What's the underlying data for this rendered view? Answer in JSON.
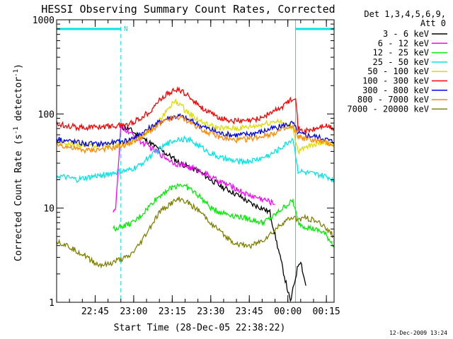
{
  "chart_data": {
    "type": "line",
    "title": "HESSI Observing Summary Count Rates, Corrected",
    "xlabel": "Start Time (28-Dec-05 22:38:22)",
    "ylabel": "Corrected Count Rate (s",
    "ylabel_sup1": "-1",
    "ylabel_mid": " detector",
    "ylabel_sup2": "-1",
    "ylabel_end": ")",
    "x_ticks": [
      "22:45",
      "23:00",
      "23:15",
      "23:30",
      "23:45",
      "00:00",
      "00:15"
    ],
    "y_ticks": [
      "1",
      "10",
      "100",
      "1000"
    ],
    "ylim": [
      1,
      1000
    ],
    "y_scale": "log",
    "x_range_minutes": [
      -8,
      100
    ],
    "legend_header": [
      "Det 1,3,4,5,6,9,",
      "Att 0"
    ],
    "legend_placement": "top-right-outside",
    "footer_timestamp": "12-Dec-2009 13:24",
    "flags": {
      "marker_label": "N",
      "color": "#00e5e5",
      "segments": [
        [
          -8,
          17
        ],
        [
          85,
          100
        ]
      ],
      "dashed_at": [
        17,
        100
      ],
      "solid_at": [
        85
      ]
    },
    "series": [
      {
        "name": "3 - 6 keV",
        "color": "#000000",
        "points": [
          [
            17,
            72
          ],
          [
            20,
            70
          ],
          [
            24,
            58
          ],
          [
            28,
            50
          ],
          [
            32,
            42
          ],
          [
            36,
            36
          ],
          [
            40,
            30
          ],
          [
            44,
            27
          ],
          [
            48,
            24
          ],
          [
            52,
            20
          ],
          [
            56,
            17
          ],
          [
            60,
            15
          ],
          [
            64,
            13
          ],
          [
            68,
            11
          ],
          [
            72,
            10
          ],
          [
            75,
            9
          ],
          [
            83,
            1
          ],
          [
            86,
            2.5
          ],
          [
            87,
            2.8
          ],
          [
            88,
            2
          ],
          [
            89,
            1.5
          ]
        ]
      },
      {
        "name": "6 - 12 keV",
        "color": "#ff00ff",
        "points": [
          [
            14,
            9.5
          ],
          [
            15,
            10
          ],
          [
            17,
            72
          ],
          [
            20,
            65
          ],
          [
            24,
            52
          ],
          [
            28,
            45
          ],
          [
            32,
            38
          ],
          [
            34,
            35
          ],
          [
            38,
            30
          ],
          [
            42,
            28
          ],
          [
            46,
            26
          ],
          [
            50,
            23
          ],
          [
            54,
            20
          ],
          [
            58,
            18
          ],
          [
            62,
            16
          ],
          [
            66,
            14
          ],
          [
            70,
            13
          ],
          [
            74,
            12
          ],
          [
            77,
            11
          ]
        ]
      },
      {
        "name": "12 - 25 keV",
        "color": "#00ee00",
        "points": [
          [
            14,
            6
          ],
          [
            18,
            6.5
          ],
          [
            22,
            7
          ],
          [
            26,
            9
          ],
          [
            30,
            12
          ],
          [
            34,
            15
          ],
          [
            38,
            17
          ],
          [
            40,
            18
          ],
          [
            44,
            16
          ],
          [
            48,
            13
          ],
          [
            52,
            10
          ],
          [
            56,
            9
          ],
          [
            60,
            8.5
          ],
          [
            64,
            8
          ],
          [
            68,
            7.5
          ],
          [
            72,
            7
          ],
          [
            76,
            8
          ],
          [
            80,
            10
          ],
          [
            84,
            12
          ],
          [
            86,
            7
          ],
          [
            88,
            6.5
          ],
          [
            92,
            6
          ],
          [
            96,
            5.5
          ],
          [
            100,
            4
          ]
        ]
      },
      {
        "name": "25 - 50 keV",
        "color": "#00e5e5",
        "points": [
          [
            -8,
            22
          ],
          [
            -4,
            21
          ],
          [
            0,
            20
          ],
          [
            4,
            21
          ],
          [
            8,
            22
          ],
          [
            12,
            23
          ],
          [
            16,
            24
          ],
          [
            20,
            25
          ],
          [
            24,
            28
          ],
          [
            28,
            35
          ],
          [
            32,
            42
          ],
          [
            36,
            50
          ],
          [
            40,
            55
          ],
          [
            44,
            52
          ],
          [
            48,
            45
          ],
          [
            52,
            38
          ],
          [
            56,
            34
          ],
          [
            60,
            32
          ],
          [
            64,
            31
          ],
          [
            68,
            32
          ],
          [
            72,
            34
          ],
          [
            76,
            38
          ],
          [
            80,
            45
          ],
          [
            84,
            55
          ],
          [
            86,
            25
          ],
          [
            88,
            24
          ],
          [
            92,
            23
          ],
          [
            96,
            22
          ],
          [
            100,
            20
          ]
        ]
      },
      {
        "name": "50 - 100 keV",
        "color": "#dddd00",
        "points": [
          [
            -8,
            50
          ],
          [
            0,
            47
          ],
          [
            8,
            46
          ],
          [
            16,
            47
          ],
          [
            20,
            50
          ],
          [
            24,
            55
          ],
          [
            28,
            65
          ],
          [
            32,
            85
          ],
          [
            36,
            120
          ],
          [
            38,
            135
          ],
          [
            40,
            128
          ],
          [
            42,
            110
          ],
          [
            46,
            90
          ],
          [
            50,
            78
          ],
          [
            54,
            72
          ],
          [
            58,
            70
          ],
          [
            62,
            70
          ],
          [
            66,
            72
          ],
          [
            70,
            75
          ],
          [
            74,
            80
          ],
          [
            78,
            85
          ],
          [
            82,
            75
          ],
          [
            84,
            72
          ],
          [
            86,
            40
          ],
          [
            88,
            42
          ],
          [
            92,
            48
          ],
          [
            96,
            50
          ],
          [
            100,
            48
          ]
        ]
      },
      {
        "name": "100 - 300 keV",
        "color": "#ff0000",
        "points": [
          [
            -8,
            78
          ],
          [
            -4,
            76
          ],
          [
            0,
            72
          ],
          [
            4,
            72
          ],
          [
            8,
            73
          ],
          [
            12,
            74
          ],
          [
            16,
            75
          ],
          [
            20,
            78
          ],
          [
            24,
            88
          ],
          [
            28,
            105
          ],
          [
            32,
            140
          ],
          [
            36,
            170
          ],
          [
            40,
            180
          ],
          [
            44,
            150
          ],
          [
            48,
            120
          ],
          [
            52,
            100
          ],
          [
            56,
            90
          ],
          [
            60,
            85
          ],
          [
            64,
            83
          ],
          [
            68,
            85
          ],
          [
            72,
            92
          ],
          [
            76,
            105
          ],
          [
            80,
            120
          ],
          [
            84,
            150
          ],
          [
            85,
            155
          ],
          [
            86,
            70
          ],
          [
            88,
            65
          ],
          [
            92,
            68
          ],
          [
            96,
            75
          ],
          [
            100,
            70
          ]
        ]
      },
      {
        "name": "300 - 800 keV",
        "color": "#0000ff",
        "points": [
          [
            -8,
            55
          ],
          [
            -4,
            52
          ],
          [
            0,
            50
          ],
          [
            4,
            48
          ],
          [
            8,
            48
          ],
          [
            12,
            49
          ],
          [
            16,
            50
          ],
          [
            20,
            53
          ],
          [
            24,
            60
          ],
          [
            28,
            70
          ],
          [
            32,
            82
          ],
          [
            36,
            92
          ],
          [
            40,
            95
          ],
          [
            44,
            85
          ],
          [
            48,
            75
          ],
          [
            52,
            68
          ],
          [
            56,
            62
          ],
          [
            60,
            60
          ],
          [
            64,
            60
          ],
          [
            68,
            62
          ],
          [
            72,
            65
          ],
          [
            76,
            70
          ],
          [
            80,
            75
          ],
          [
            84,
            80
          ],
          [
            86,
            62
          ],
          [
            88,
            60
          ],
          [
            92,
            58
          ],
          [
            96,
            55
          ],
          [
            100,
            50
          ]
        ]
      },
      {
        "name": "800 - 7000 keV",
        "color": "#ff8800",
        "points": [
          [
            -8,
            48
          ],
          [
            -4,
            45
          ],
          [
            0,
            42
          ],
          [
            4,
            41
          ],
          [
            8,
            42
          ],
          [
            12,
            43
          ],
          [
            16,
            45
          ],
          [
            20,
            48
          ],
          [
            24,
            55
          ],
          [
            28,
            65
          ],
          [
            32,
            78
          ],
          [
            36,
            88
          ],
          [
            40,
            92
          ],
          [
            44,
            82
          ],
          [
            48,
            70
          ],
          [
            52,
            62
          ],
          [
            56,
            56
          ],
          [
            60,
            53
          ],
          [
            64,
            53
          ],
          [
            68,
            55
          ],
          [
            72,
            58
          ],
          [
            76,
            62
          ],
          [
            80,
            68
          ],
          [
            84,
            72
          ],
          [
            86,
            58
          ],
          [
            88,
            55
          ],
          [
            92,
            53
          ],
          [
            96,
            50
          ],
          [
            100,
            47
          ]
        ]
      },
      {
        "name": "7000 - 20000 keV",
        "color": "#808000",
        "points": [
          [
            -8,
            4.5
          ],
          [
            -4,
            4
          ],
          [
            0,
            3.5
          ],
          [
            4,
            3
          ],
          [
            8,
            2.5
          ],
          [
            12,
            2.5
          ],
          [
            16,
            2.8
          ],
          [
            20,
            3
          ],
          [
            24,
            4
          ],
          [
            28,
            6
          ],
          [
            32,
            9
          ],
          [
            36,
            11
          ],
          [
            40,
            12.5
          ],
          [
            44,
            11
          ],
          [
            48,
            9
          ],
          [
            52,
            7
          ],
          [
            56,
            5.5
          ],
          [
            60,
            4.5
          ],
          [
            64,
            4
          ],
          [
            68,
            4
          ],
          [
            72,
            4.5
          ],
          [
            76,
            5.5
          ],
          [
            80,
            7
          ],
          [
            84,
            8
          ],
          [
            86,
            7.5
          ],
          [
            88,
            8
          ],
          [
            92,
            7.5
          ],
          [
            96,
            6.5
          ],
          [
            100,
            5
          ]
        ]
      }
    ]
  }
}
